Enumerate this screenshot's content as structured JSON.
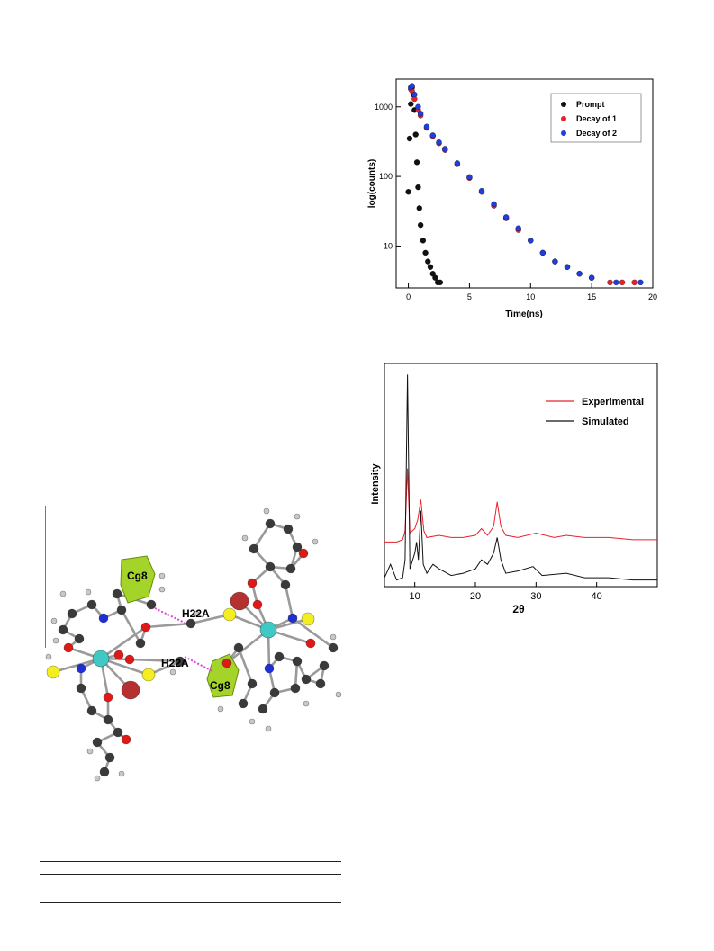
{
  "decay_plot": {
    "y_axis_label": "log(counts)",
    "x_axis_label": "Time(ns)",
    "y_ticks": [
      "10",
      "100",
      "1000"
    ],
    "x_ticks": [
      "0",
      "5",
      "10",
      "15",
      "20"
    ],
    "legend": [
      {
        "label": "Prompt",
        "color": "#111111"
      },
      {
        "label": "Decay of 1",
        "color": "#e8202a"
      },
      {
        "label": "Decay of 2",
        "color": "#1f3ee0"
      }
    ]
  },
  "pxrd_plot": {
    "y_axis_label": "Intensity",
    "x_axis_label": "2θ",
    "x_ticks": [
      "10",
      "20",
      "30",
      "40"
    ],
    "legend": [
      {
        "label": "Experimental",
        "color": "#e8202a"
      },
      {
        "label": "Simulated",
        "color": "#111111"
      }
    ]
  },
  "structure_figure": {
    "labels": [
      "Cg8",
      "H22A",
      "H22A",
      "Cg8"
    ],
    "atom_colors": {
      "carbon": "#3a3a3a",
      "hydrogen": "#c8c8c8",
      "oxygen": "#e01818",
      "nitrogen": "#1f2fd6",
      "sulfur": "#f4ee20",
      "metal": "#3fc9c4",
      "halide": "#b53030",
      "ring": "#a4d42a",
      "contact": "#e040e0"
    }
  },
  "chart_data": [
    {
      "type": "scatter",
      "title": "",
      "xlabel": "Time(ns)",
      "ylabel": "log(counts)",
      "xlim": [
        -1,
        20
      ],
      "ylim": [
        2.5,
        2500
      ],
      "yscale": "log",
      "legend_position": "top-right",
      "grid": false,
      "series": [
        {
          "name": "Prompt",
          "x": [
            0.0,
            0.1,
            0.2,
            0.3,
            0.4,
            0.5,
            0.6,
            0.7,
            0.8,
            0.9,
            1.0,
            1.2,
            1.4,
            1.6,
            1.8,
            2.0,
            2.2,
            2.4,
            2.6
          ],
          "y": [
            60,
            350,
            1100,
            1900,
            1500,
            900,
            400,
            160,
            70,
            35,
            20,
            12,
            8,
            6,
            5,
            4,
            3.5,
            3,
            3
          ]
        },
        {
          "name": "Decay of 1",
          "x": [
            0.2,
            0.3,
            0.5,
            0.8,
            1.0,
            1.5,
            2.0,
            2.5,
            3.0,
            4.0,
            5.0,
            6.0,
            7.0,
            8.0,
            9.0,
            10.0,
            11.0,
            12.0,
            13.0,
            14.0,
            15.0,
            16.5,
            17.5,
            18.5
          ],
          "y": [
            1800,
            1700,
            1300,
            900,
            750,
            500,
            380,
            300,
            240,
            150,
            95,
            60,
            38,
            25,
            17,
            12,
            8,
            6,
            5,
            4,
            3.5,
            3,
            3,
            3
          ]
        },
        {
          "name": "Decay of 2",
          "x": [
            0.2,
            0.3,
            0.5,
            0.8,
            1.0,
            1.5,
            2.0,
            2.5,
            3.0,
            4.0,
            5.0,
            6.0,
            7.0,
            8.0,
            9.0,
            10.0,
            11.0,
            12.0,
            13.0,
            14.0,
            15.0,
            17.0,
            19.0
          ],
          "y": [
            1900,
            2000,
            1500,
            1000,
            800,
            520,
            390,
            310,
            250,
            155,
            98,
            62,
            40,
            26,
            18,
            12,
            8,
            6,
            5,
            4,
            3.5,
            3,
            3
          ]
        }
      ]
    },
    {
      "type": "line",
      "title": "",
      "xlabel": "2θ",
      "ylabel": "Intensity",
      "xlim": [
        5,
        50
      ],
      "ylim": [
        0,
        100
      ],
      "legend_position": "top-right",
      "grid": false,
      "series": [
        {
          "name": "Experimental",
          "x": [
            5,
            6,
            7,
            8,
            8.4,
            8.8,
            9.2,
            10,
            10.5,
            11,
            11.5,
            12,
            14,
            16,
            18,
            20,
            21,
            22,
            23,
            23.6,
            24.2,
            25,
            27,
            30,
            33,
            35,
            38,
            42,
            46,
            50
          ],
          "y": [
            20,
            20,
            20,
            21,
            25,
            53,
            24,
            26,
            30,
            39,
            25,
            22,
            23,
            22,
            22,
            23,
            26,
            23,
            27,
            38,
            27,
            23,
            22,
            24,
            22,
            23,
            22,
            22,
            21,
            21
          ]
        },
        {
          "name": "Simulated",
          "x": [
            5,
            6,
            7,
            8,
            8.4,
            8.8,
            9.2,
            10,
            10.3,
            10.6,
            11,
            11.4,
            12,
            13,
            14,
            16,
            18,
            20,
            21,
            22,
            23,
            23.6,
            24.2,
            25,
            27,
            29.5,
            31,
            35,
            38,
            42,
            46,
            50
          ],
          "y": [
            4,
            10,
            3,
            4,
            12,
            95,
            8,
            15,
            20,
            12,
            34,
            10,
            6,
            10,
            8,
            5,
            6,
            8,
            12,
            10,
            15,
            22,
            12,
            6,
            7,
            9,
            5,
            6,
            4,
            4,
            3,
            3
          ]
        }
      ]
    }
  ]
}
